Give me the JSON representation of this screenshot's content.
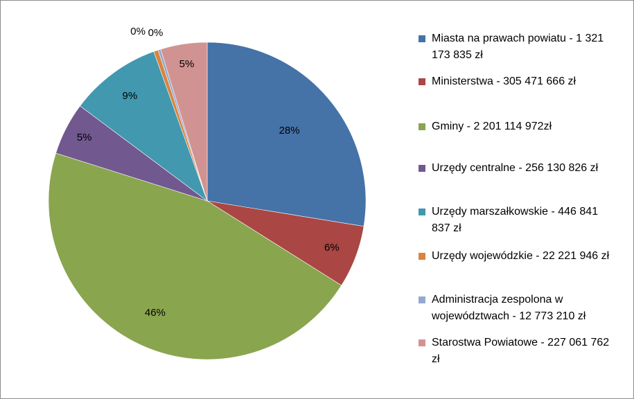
{
  "chart_data": {
    "type": "pie",
    "title": "",
    "slices": [
      {
        "label": "Miasta na prawach powiatu - 1 321 173 835 zł",
        "value": 1321173835,
        "percent_label": "28%",
        "color": "#4572A7"
      },
      {
        "label": "Ministerstwa - 305 471 666 zł",
        "value": 305471666,
        "percent_label": "6%",
        "color": "#AA4643"
      },
      {
        "label": "Gminy - 2 201 114 972zł",
        "value": 2201114972,
        "percent_label": "46%",
        "color": "#89A54E"
      },
      {
        "label": "Urzędy centralne - 256 130 826 zł",
        "value": 256130826,
        "percent_label": "5%",
        "color": "#71588F"
      },
      {
        "label": "Urzędy marszałkowskie - 446 841 837 zł",
        "value": 446841837,
        "percent_label": "9%",
        "color": "#4198AF"
      },
      {
        "label": "Urzędy wojewódzkie - 22 221 946 zł",
        "value": 22221946,
        "percent_label": "0%",
        "color": "#DB843D"
      },
      {
        "label": "Administracja zespolona w województwach - 12 773 210 zł",
        "value": 12773210,
        "percent_label": "0%",
        "color": "#93A9CF"
      },
      {
        "label": "Starostwa Powiatowe - 227 061 762 zł",
        "value": 227061762,
        "percent_label": "5%",
        "color": "#D19392"
      }
    ],
    "legend_position": "right"
  }
}
